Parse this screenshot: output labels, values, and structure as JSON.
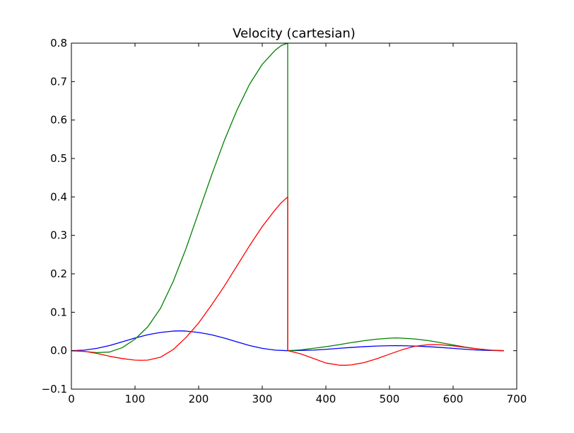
{
  "chart_data": {
    "type": "line",
    "title": "Velocity (cartesian)",
    "xlabel": "",
    "ylabel": "",
    "xlim": [
      0,
      700
    ],
    "ylim": [
      -0.1,
      0.8
    ],
    "xticks": [
      0,
      100,
      200,
      300,
      400,
      500,
      600,
      700
    ],
    "xtick_labels": [
      "0",
      "100",
      "200",
      "300",
      "400",
      "500",
      "600",
      "700"
    ],
    "yticks": [
      -0.1,
      0.0,
      0.1,
      0.2,
      0.3,
      0.4,
      0.5,
      0.6,
      0.7,
      0.8
    ],
    "ytick_labels": [
      "−0.1",
      "0.0",
      "0.1",
      "0.2",
      "0.3",
      "0.4",
      "0.5",
      "0.6",
      "0.7",
      "0.8"
    ],
    "grid": false,
    "legend": "none",
    "series": [
      {
        "color": "#0000ff",
        "points": [
          [
            0,
            0.0
          ],
          [
            20,
            0.0015
          ],
          [
            40,
            0.006
          ],
          [
            60,
            0.0135
          ],
          [
            80,
            0.023
          ],
          [
            100,
            0.033
          ],
          [
            120,
            0.0415
          ],
          [
            140,
            0.0475
          ],
          [
            160,
            0.051
          ],
          [
            170,
            0.0515
          ],
          [
            180,
            0.051
          ],
          [
            200,
            0.0475
          ],
          [
            220,
            0.0415
          ],
          [
            240,
            0.033
          ],
          [
            260,
            0.023
          ],
          [
            280,
            0.0135
          ],
          [
            300,
            0.006
          ],
          [
            320,
            0.0015
          ],
          [
            340,
            0.0
          ],
          [
            360,
            0.0005
          ],
          [
            380,
            0.0015
          ],
          [
            400,
            0.0035
          ],
          [
            420,
            0.006
          ],
          [
            440,
            0.0085
          ],
          [
            460,
            0.0105
          ],
          [
            480,
            0.012
          ],
          [
            500,
            0.013
          ],
          [
            510,
            0.0132
          ],
          [
            520,
            0.013
          ],
          [
            540,
            0.012
          ],
          [
            560,
            0.0105
          ],
          [
            580,
            0.0085
          ],
          [
            600,
            0.006
          ],
          [
            620,
            0.0035
          ],
          [
            640,
            0.0015
          ],
          [
            660,
            0.0005
          ],
          [
            680,
            0.0
          ]
        ]
      },
      {
        "color": "#008000",
        "points": [
          [
            0,
            0.0
          ],
          [
            20,
            -0.002
          ],
          [
            40,
            -0.005
          ],
          [
            60,
            -0.0035
          ],
          [
            80,
            0.008
          ],
          [
            100,
            0.03
          ],
          [
            120,
            0.062
          ],
          [
            140,
            0.11
          ],
          [
            160,
            0.18
          ],
          [
            180,
            0.265
          ],
          [
            200,
            0.36
          ],
          [
            220,
            0.455
          ],
          [
            240,
            0.545
          ],
          [
            260,
            0.625
          ],
          [
            280,
            0.693
          ],
          [
            300,
            0.745
          ],
          [
            320,
            0.781
          ],
          [
            330,
            0.794
          ],
          [
            340,
            0.8
          ],
          [
            340.001,
            0.0
          ],
          [
            360,
            0.002
          ],
          [
            380,
            0.006
          ],
          [
            400,
            0.0105
          ],
          [
            420,
            0.0155
          ],
          [
            440,
            0.021
          ],
          [
            460,
            0.026
          ],
          [
            480,
            0.03
          ],
          [
            500,
            0.0325
          ],
          [
            510,
            0.0332
          ],
          [
            520,
            0.0325
          ],
          [
            540,
            0.0305
          ],
          [
            560,
            0.0265
          ],
          [
            580,
            0.021
          ],
          [
            600,
            0.015
          ],
          [
            620,
            0.009
          ],
          [
            640,
            0.0045
          ],
          [
            660,
            0.0012
          ],
          [
            680,
            0.0
          ]
        ]
      },
      {
        "color": "#ff0000",
        "points": [
          [
            0,
            0.0
          ],
          [
            20,
            -0.0015
          ],
          [
            40,
            -0.007
          ],
          [
            60,
            -0.0145
          ],
          [
            80,
            -0.0205
          ],
          [
            100,
            -0.0245
          ],
          [
            110,
            -0.025
          ],
          [
            120,
            -0.0245
          ],
          [
            140,
            -0.017
          ],
          [
            160,
            0.003
          ],
          [
            180,
            0.034
          ],
          [
            200,
            0.072
          ],
          [
            220,
            0.118
          ],
          [
            240,
            0.167
          ],
          [
            260,
            0.22
          ],
          [
            280,
            0.273
          ],
          [
            300,
            0.323
          ],
          [
            320,
            0.366
          ],
          [
            330,
            0.385
          ],
          [
            340,
            0.4
          ],
          [
            340.001,
            0.0
          ],
          [
            360,
            -0.008
          ],
          [
            380,
            -0.02
          ],
          [
            400,
            -0.032
          ],
          [
            420,
            -0.0375
          ],
          [
            430,
            -0.038
          ],
          [
            440,
            -0.037
          ],
          [
            460,
            -0.031
          ],
          [
            480,
            -0.021
          ],
          [
            500,
            -0.009
          ],
          [
            520,
            0.0025
          ],
          [
            540,
            0.0115
          ],
          [
            560,
            0.0155
          ],
          [
            570,
            0.016
          ],
          [
            580,
            0.0155
          ],
          [
            600,
            0.0125
          ],
          [
            620,
            0.0085
          ],
          [
            640,
            0.0045
          ],
          [
            660,
            0.0015
          ],
          [
            680,
            0.0
          ]
        ]
      }
    ]
  }
}
